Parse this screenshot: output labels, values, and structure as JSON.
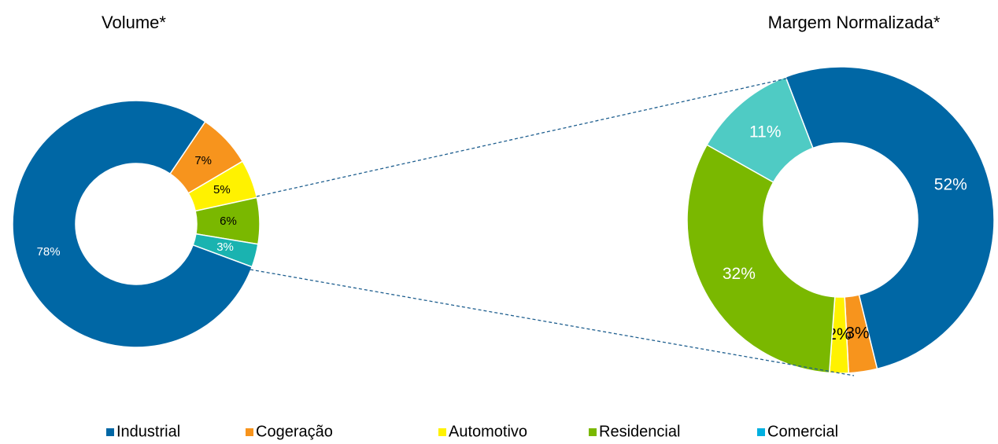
{
  "chart_data": [
    {
      "type": "donut",
      "title": "Volume*",
      "categories": [
        "Industrial",
        "Cogeração",
        "Automotivo",
        "Residencial",
        "Comercial"
      ],
      "values": [
        78,
        7,
        5,
        6,
        3
      ],
      "value_labels": [
        "78%",
        "7%",
        "5%",
        "6%",
        "3%"
      ],
      "colors": [
        "#0067a5",
        "#f7941d",
        "#fff200",
        "#7ab800",
        "#1ab3b0"
      ],
      "label_colors": [
        "#ffffff",
        "#000000",
        "#000000",
        "#000000",
        "#ffffff"
      ]
    },
    {
      "type": "donut",
      "title": "Margem Normalizada*",
      "categories": [
        "Industrial",
        "Cogeração",
        "Automotivo",
        "Residencial",
        "Comercial"
      ],
      "values": [
        52,
        3,
        2,
        32,
        11
      ],
      "value_labels": [
        "52%",
        "3%",
        "2%",
        "32%",
        "11%"
      ],
      "colors": [
        "#0067a5",
        "#f7941d",
        "#fff200",
        "#7ab800",
        "#4fcbc4"
      ],
      "label_colors": [
        "#ffffff",
        "#000000",
        "#000000",
        "#ffffff",
        "#ffffff"
      ]
    }
  ],
  "legend": {
    "position": "bottom",
    "colors": [
      "#0067a5",
      "#f7941d",
      "#fff200",
      "#7ab800",
      "#00b0e0"
    ]
  }
}
